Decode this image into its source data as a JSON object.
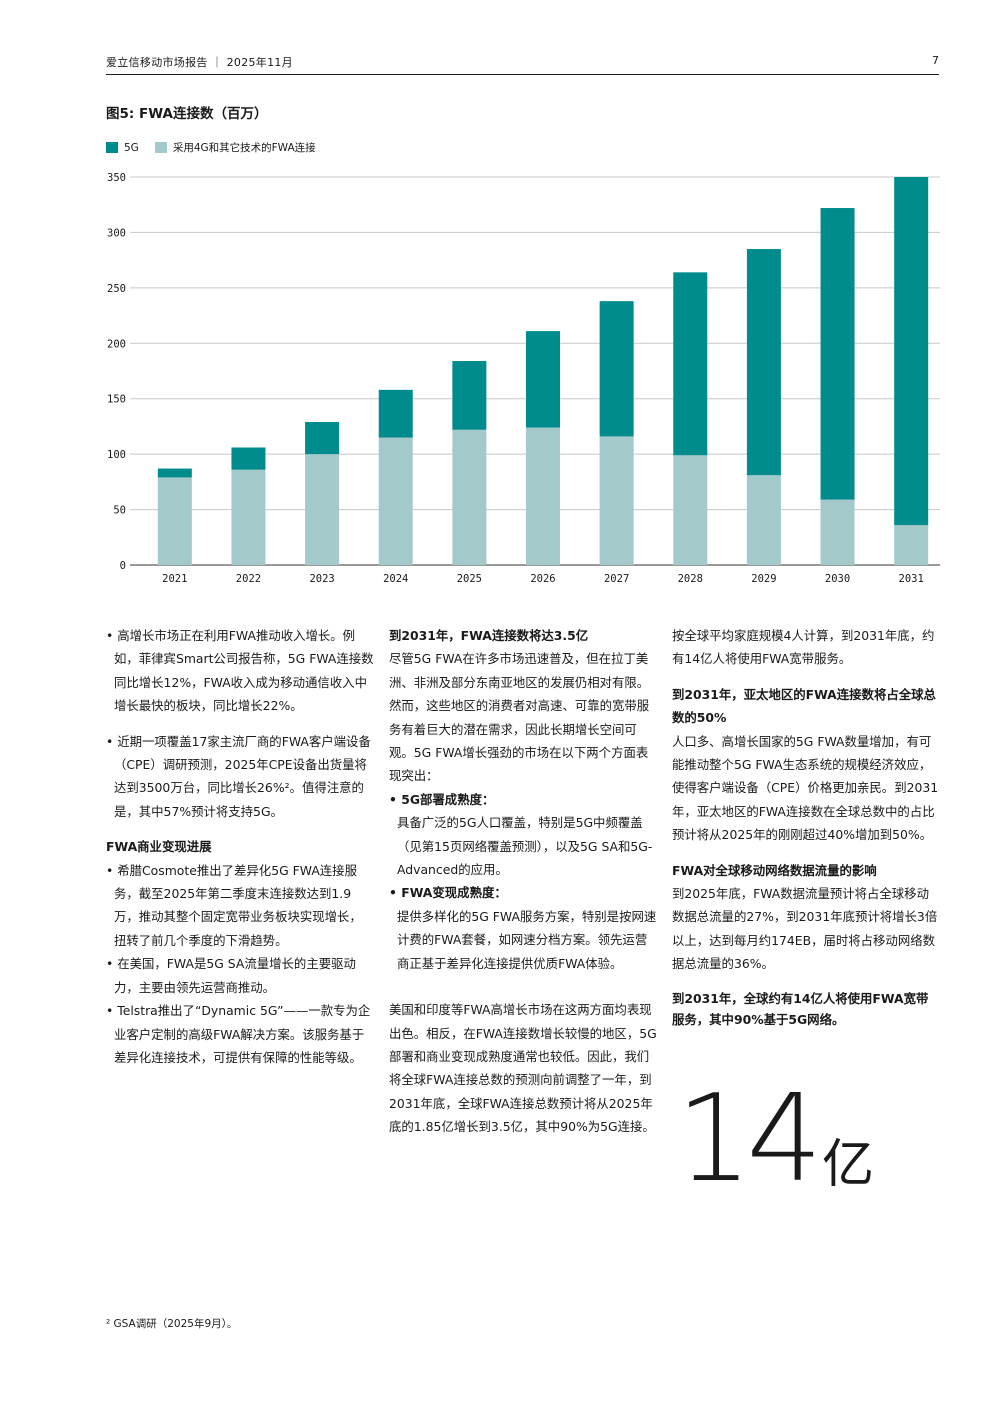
{
  "header": {
    "title": "爱立信移动市场报告 ｜ 2025年11月",
    "page": "7"
  },
  "figure": {
    "title": "图5: FWA连接数（百万）",
    "legend": {
      "series_5g": "5G",
      "series_other": "采用4G和其它技术的FWA连接"
    },
    "colors": {
      "series_5g": "#008b8d",
      "series_other": "#a4c9ca"
    }
  },
  "chart_data": {
    "type": "bar",
    "stacked": true,
    "title": "图5: FWA连接数（百万）",
    "categories": [
      "2021",
      "2022",
      "2023",
      "2024",
      "2025",
      "2026",
      "2027",
      "2028",
      "2029",
      "2030",
      "2031"
    ],
    "series": [
      {
        "name": "采用4G和其它技术的FWA连接",
        "values": [
          79,
          86,
          100,
          115,
          122,
          124,
          116,
          99,
          81,
          59,
          36
        ]
      },
      {
        "name": "5G",
        "values": [
          8,
          20,
          29,
          43,
          62,
          87,
          122,
          165,
          204,
          263,
          314
        ]
      }
    ],
    "ylim": [
      0,
      350
    ],
    "yticks": [
      "0",
      "50",
      "100",
      "150",
      "200",
      "250",
      "300",
      "350"
    ],
    "grid": true,
    "legend_position": "top-left"
  },
  "col1": {
    "b1": "• 高增长市场正在利用FWA推动收入增长。例如，菲律宾Smart公司报告称，5G FWA连接数同比增长12%，FWA收入成为移动通信收入中增长最快的板块，同比增长22%。",
    "b2": "• 近期一项覆盖17家主流厂商的FWA客户端设备（CPE）调研预测，2025年CPE设备出货量将达到3500万台，同比增长26%²。值得注意的是，其中57%预计将支持5G。",
    "h1": "FWA商业变现进展",
    "b3": "• 希腊Cosmote推出了差异化5G FWA连接服务，截至2025年第二季度末连接数达到1.9万，推动其整个固定宽带业务板块实现增长，扭转了前几个季度的下滑趋势。",
    "b4": "• 在美国，FWA是5G SA流量增长的主要驱动力，主要由领先运营商推动。",
    "b5": "• Telstra推出了“Dynamic 5G”——一款专为企业客户定制的高级FWA解决方案。该服务基于差异化连接技术，可提供有保障的性能等级。"
  },
  "col2": {
    "h1": "到2031年，FWA连接数将达3.5亿",
    "p1": "尽管5G FWA在许多市场迅速普及，但在拉丁美洲、非洲及部分东南亚地区的发展仍相对有限。然而，这些地区的消费者对高速、可靠的宽带服务有着巨大的潜在需求，因此长期增长空间可观。5G FWA增长强劲的市场在以下两个方面表现突出：",
    "b1h": "• 5G部署成熟度：",
    "b1": "具备广泛的5G人口覆盖，特别是5G中频覆盖（见第15页网络覆盖预测），以及5G SA和5G-Advanced的应用。",
    "b2h": "• FWA变现成熟度：",
    "b2": "提供多样化的5G FWA服务方案，特别是按网速计费的FWA套餐，如网速分档方案。领先运营商正基于差异化连接提供优质FWA体验。",
    "p2": "美国和印度等FWA高增长市场在这两方面均表现出色。相反，在FWA连接数增长较慢的地区，5G部署和商业变现成熟度通常也较低。因此，我们将全球FWA连接总数的预测向前调整了一年，到2031年底，全球FWA连接总数预计将从2025年底的1.85亿增长到3.5亿，其中90%为5G连接。"
  },
  "col3": {
    "p0": "按全球平均家庭规模4人计算，到2031年底，约有14亿人将使用FWA宽带服务。",
    "h1": "到2031年，亚太地区的FWA连接数将占全球总数的50%",
    "p1": "人口多、高增长国家的5G FWA数量增加，有可能推动整个5G FWA生态系统的规模经济效应，使得客户端设备（CPE）价格更加亲民。到2031年，亚太地区的FWA连接数在全球总数中的占比预计将从2025年的刚刚超过40%增加到50%。",
    "h2": "FWA对全球移动网络数据流量的影响",
    "p2": "到2025年底，FWA数据流量预计将占全球移动数据总流量的27%，到2031年底预计将增长3倍以上，达到每月约174EB，届时将占移动网络数据总流量的36%。",
    "callout": "到2031年，全球约有14亿人将使用FWA宽带服务，其中90%基于5G网络。",
    "big_number": "14",
    "big_unit": "亿"
  },
  "footnote": "² GSA调研（2025年9月）。"
}
